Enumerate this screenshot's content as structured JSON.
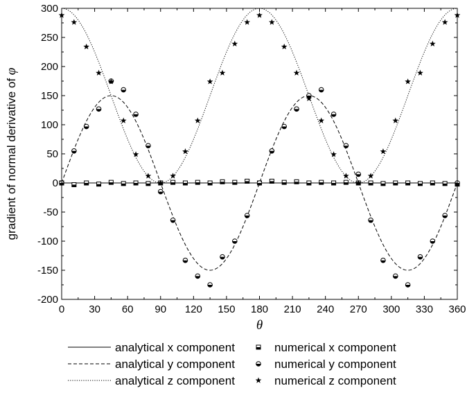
{
  "chart_data": {
    "type": "scatter",
    "xlabel": "θ",
    "ylabel_prefix": "gradient of normal derivative of ",
    "ylabel_symbol": "φ",
    "xlim": [
      0,
      360
    ],
    "ylim": [
      -200,
      300
    ],
    "xticks": [
      0,
      30,
      60,
      90,
      120,
      150,
      180,
      210,
      240,
      270,
      300,
      330,
      360
    ],
    "yticks": [
      -200,
      -150,
      -100,
      -50,
      0,
      50,
      100,
      150,
      200,
      250,
      300
    ],
    "grid": false,
    "legend_position": "bottom",
    "analytical": [
      {
        "name": "analytical  x component",
        "style": "solid",
        "formula": "0"
      },
      {
        "name": "analytical  y component",
        "style": "dashed",
        "formula": "150*sin(2*theta)"
      },
      {
        "name": "analytical  z component",
        "style": "dotted",
        "formula": "150+150*cos(2*theta)"
      }
    ],
    "numerical_x": [
      0,
      11.25,
      22.5,
      33.75,
      45,
      56.25,
      67.5,
      78.75,
      90,
      101.25,
      112.5,
      123.75,
      135,
      146.25,
      157.5,
      168.75,
      180,
      191.25,
      202.5,
      213.75,
      225,
      236.25,
      247.5,
      258.75,
      270,
      281.25,
      292.5,
      303.75,
      315,
      326.25,
      337.5,
      348.75,
      360
    ],
    "numerical": [
      {
        "name": "numerical x component",
        "marker": "square",
        "values": [
          0,
          -3,
          0,
          -2,
          1,
          -1,
          0,
          -1,
          0,
          1,
          0,
          1,
          0,
          2,
          1,
          3,
          0,
          3,
          1,
          2,
          0,
          1,
          0,
          1,
          0,
          0,
          -1,
          0,
          0,
          -1,
          0,
          -1,
          -2
        ]
      },
      {
        "name": "numerical y component",
        "marker": "half-circle",
        "values": [
          0,
          55,
          97,
          127,
          175,
          160,
          118,
          64,
          -15,
          -64,
          -133,
          -160,
          -175,
          -127,
          -100,
          -56,
          0,
          55,
          97,
          127,
          150,
          160,
          118,
          64,
          15,
          -64,
          -133,
          -160,
          -175,
          -127,
          -100,
          -56,
          0
        ]
      },
      {
        "name": "numerical z component",
        "marker": "star",
        "values": [
          288,
          276,
          234,
          189,
          174,
          107,
          49,
          12,
          0,
          12,
          54,
          107,
          174,
          189,
          239,
          276,
          288,
          276,
          234,
          189,
          145,
          107,
          49,
          12,
          0,
          12,
          54,
          107,
          174,
          189,
          239,
          276,
          288
        ]
      }
    ]
  }
}
